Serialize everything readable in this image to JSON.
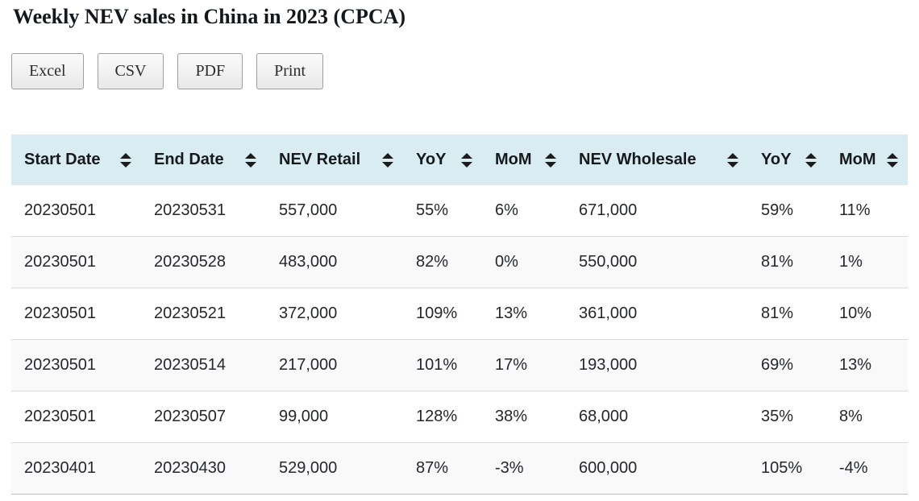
{
  "page": {
    "title": "Weekly NEV sales in China in 2023 (CPCA)"
  },
  "toolbar": {
    "buttons": [
      {
        "id": "excel",
        "label": "Excel"
      },
      {
        "id": "csv",
        "label": "CSV"
      },
      {
        "id": "pdf",
        "label": "PDF"
      },
      {
        "id": "print",
        "label": "Print"
      }
    ]
  },
  "table": {
    "columns": [
      {
        "label": "Start Date",
        "sortable": true
      },
      {
        "label": "End Date",
        "sortable": true
      },
      {
        "label": "NEV Retail",
        "sortable": true
      },
      {
        "label": "YoY",
        "sortable": true
      },
      {
        "label": "MoM",
        "sortable": true
      },
      {
        "label": "NEV Wholesale",
        "sortable": true
      },
      {
        "label": "YoY",
        "sortable": true
      },
      {
        "label": "MoM",
        "sortable": true
      }
    ],
    "rows": [
      [
        "20230501",
        "20230531",
        "557,000",
        "55%",
        "6%",
        "671,000",
        "59%",
        "11%"
      ],
      [
        "20230501",
        "20230528",
        "483,000",
        "82%",
        "0%",
        "550,000",
        "81%",
        "1%"
      ],
      [
        "20230501",
        "20230521",
        "372,000",
        "109%",
        "13%",
        "361,000",
        "81%",
        "10%"
      ],
      [
        "20230501",
        "20230514",
        "217,000",
        "101%",
        "17%",
        "193,000",
        "69%",
        "13%"
      ],
      [
        "20230501",
        "20230507",
        "99,000",
        "128%",
        "38%",
        "68,000",
        "35%",
        "8%"
      ],
      [
        "20230401",
        "20230430",
        "529,000",
        "87%",
        "-3%",
        "600,000",
        "105%",
        "-4%"
      ]
    ]
  },
  "colors": {
    "header_bg": "#d9ecf2",
    "stripe_bg": "#f9f9f9",
    "row_border": "#dddddd",
    "table_bottom_border": "#bdbdbd",
    "text_color": "#24272b",
    "header_text_color": "#16191d",
    "sort_icon_color": "#1c1c1c",
    "button_border": "#9e9e9e",
    "button_text": "#2b2b2b"
  }
}
